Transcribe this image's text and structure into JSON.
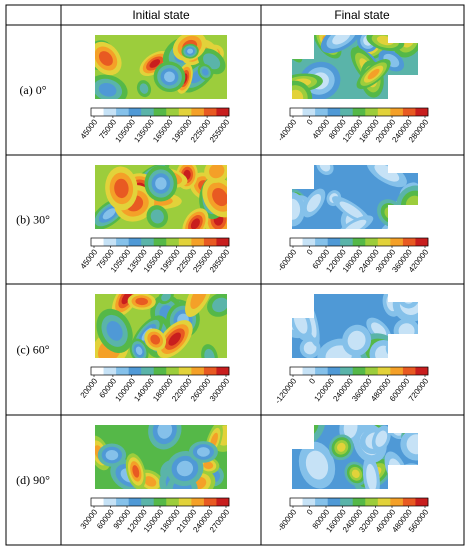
{
  "headers": [
    "Initial state",
    "Final state"
  ],
  "palette": [
    "#ffffff",
    "#c6e2f6",
    "#85c1ea",
    "#4f99d6",
    "#5ab4a9",
    "#55b848",
    "#9ccd3c",
    "#e2d23a",
    "#f4a028",
    "#e85a22",
    "#c81e1e"
  ],
  "rows": [
    {
      "label": "(a)  0°",
      "initial": {
        "ticks": [
          "45000",
          "75000",
          "105000",
          "135000",
          "165000",
          "195000",
          "225000",
          "255000"
        ],
        "seed": 11,
        "bias": 0.55
      },
      "final": {
        "ticks": [
          "-40000",
          "0",
          "40000",
          "80000",
          "120000",
          "160000",
          "200000",
          "240000",
          "280000"
        ],
        "seed": 17,
        "bias": 0.4
      }
    },
    {
      "label": "(b)  30°",
      "initial": {
        "ticks": [
          "45000",
          "75000",
          "105000",
          "135000",
          "165000",
          "195000",
          "225000",
          "255000",
          "285000"
        ],
        "seed": 23,
        "bias": 0.58
      },
      "final": {
        "ticks": [
          "-60000",
          "0",
          "60000",
          "120000",
          "180000",
          "240000",
          "300000",
          "360000",
          "420000"
        ],
        "seed": 29,
        "bias": 0.32
      }
    },
    {
      "label": "(c)  60°",
      "initial": {
        "ticks": [
          "20000",
          "60000",
          "100000",
          "140000",
          "180000",
          "220000",
          "260000",
          "300000"
        ],
        "seed": 31,
        "bias": 0.55
      },
      "final": {
        "ticks": [
          "-120000",
          "0",
          "120000",
          "240000",
          "360000",
          "480000",
          "600000",
          "720000"
        ],
        "seed": 37,
        "bias": 0.25
      }
    },
    {
      "label": "(d)  90°",
      "initial": {
        "ticks": [
          "30000",
          "60000",
          "90000",
          "120000",
          "150000",
          "180000",
          "210000",
          "240000",
          "270000"
        ],
        "seed": 41,
        "bias": 0.52
      },
      "final": {
        "ticks": [
          "-80000",
          "0",
          "80000",
          "160000",
          "240000",
          "320000",
          "400000",
          "480000",
          "560000"
        ],
        "seed": 43,
        "bias": 0.3
      }
    }
  ]
}
